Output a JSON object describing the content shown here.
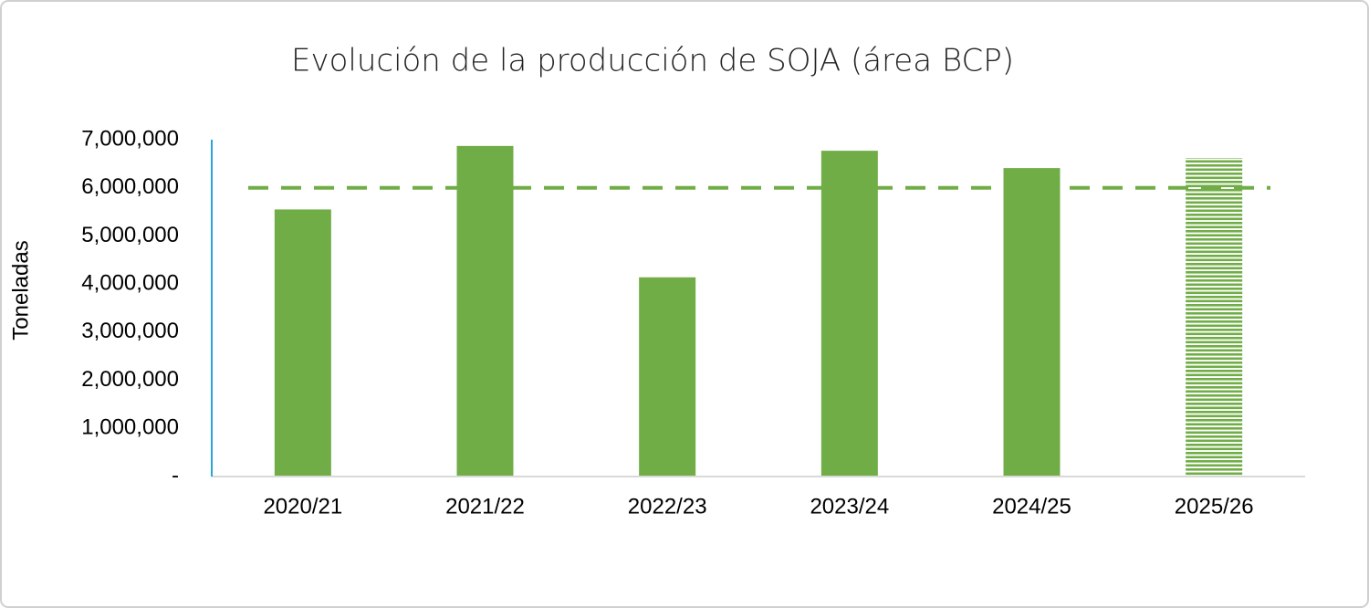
{
  "chart_data": {
    "type": "bar",
    "title": "Evolución de la producción de SOJA (área BCP)",
    "y_label": "Toneladas",
    "categories": [
      "2020/21",
      "2021/22",
      "2022/23",
      "2023/24",
      "2024/25",
      "2025/26"
    ],
    "values": [
      5550000,
      6870000,
      4140000,
      6770000,
      6410000,
      6620000
    ],
    "bar_styles": [
      "solid",
      "solid",
      "solid",
      "solid",
      "solid",
      "hatched"
    ],
    "color": "#70ad47",
    "reference_line": 6000000,
    "ylim": [
      0,
      7000000
    ],
    "yticks": [
      {
        "value": 0,
        "label": "-"
      },
      {
        "value": 1000000,
        "label": "1,000,000"
      },
      {
        "value": 2000000,
        "label": "2,000,000"
      },
      {
        "value": 3000000,
        "label": "3,000,000"
      },
      {
        "value": 4000000,
        "label": "4,000,000"
      },
      {
        "value": 5000000,
        "label": "5,000,000"
      },
      {
        "value": 6000000,
        "label": "6,000,000"
      },
      {
        "value": 7000000,
        "label": "7,000,000"
      }
    ],
    "grid": false
  }
}
